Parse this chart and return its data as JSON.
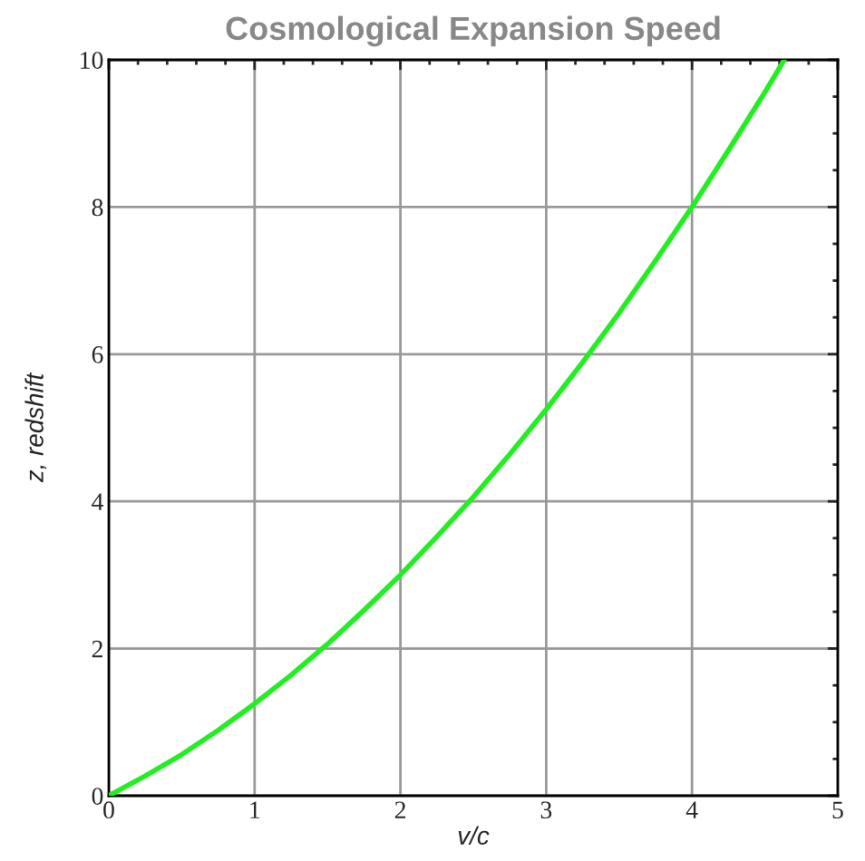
{
  "chart_data": {
    "type": "line",
    "title": "Cosmological Expansion Speed",
    "xlabel": "v/c",
    "ylabel": "z, redshift",
    "x": [
      0,
      0.25,
      0.5,
      0.75,
      1,
      1.25,
      1.5,
      1.75,
      2,
      2.25,
      2.5,
      2.75,
      3,
      3.25,
      3.5,
      3.75,
      4,
      4.25,
      4.5,
      4.63
    ],
    "series": [
      {
        "color": "#22ee22",
        "values": [
          0,
          0.27,
          0.56,
          0.89,
          1.25,
          1.64,
          2.06,
          2.52,
          3,
          3.52,
          4.06,
          4.64,
          5.25,
          5.89,
          6.56,
          7.27,
          8,
          8.77,
          9.56,
          9.99
        ]
      }
    ],
    "xlim": [
      0,
      5
    ],
    "xticks": [
      0,
      1,
      2,
      3,
      4,
      5
    ],
    "ylim": [
      0,
      10
    ],
    "yticks": [
      0,
      2,
      4,
      6,
      8,
      10
    ],
    "grid": true,
    "marker": "none",
    "line_style": "solid"
  }
}
